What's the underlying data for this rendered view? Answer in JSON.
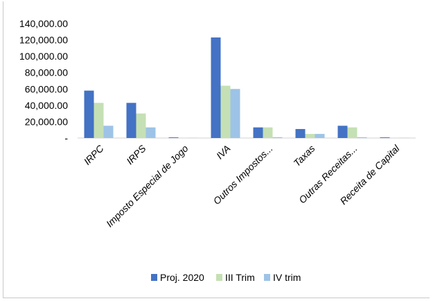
{
  "chart_data": {
    "type": "bar",
    "title": "",
    "xlabel": "",
    "ylabel": "",
    "categories": [
      "IRPC",
      "IRPS",
      "Imposto Especial de Jogo",
      "IVA",
      "Outros Impostos...",
      "Taxas",
      "Outras Receitas...",
      "Receita de Capital"
    ],
    "series": [
      {
        "name": "Proj. 2020",
        "color": "#4472C4",
        "values": [
          58000,
          43000,
          800,
          123000,
          13000,
          11000,
          15000,
          800
        ]
      },
      {
        "name": "III Trim",
        "color": "#C5E0B4",
        "values": [
          43000,
          30000,
          300,
          64000,
          13000,
          5000,
          13000,
          300
        ]
      },
      {
        "name": "IV trim",
        "color": "#9DC3E6",
        "values": [
          15000,
          13000,
          200,
          60000,
          1000,
          5000,
          1000,
          200
        ]
      }
    ],
    "ylim": [
      0,
      140000
    ],
    "yticks": [
      0,
      20000,
      40000,
      60000,
      80000,
      100000,
      120000,
      140000
    ],
    "ytick_labels": [
      "-",
      "20,000.00",
      "40,000.00",
      "60,000.00",
      "80,000.00",
      "100,000.00",
      "120,000.00",
      "140,000.00"
    ],
    "grid": false,
    "legend_position": "bottom"
  }
}
